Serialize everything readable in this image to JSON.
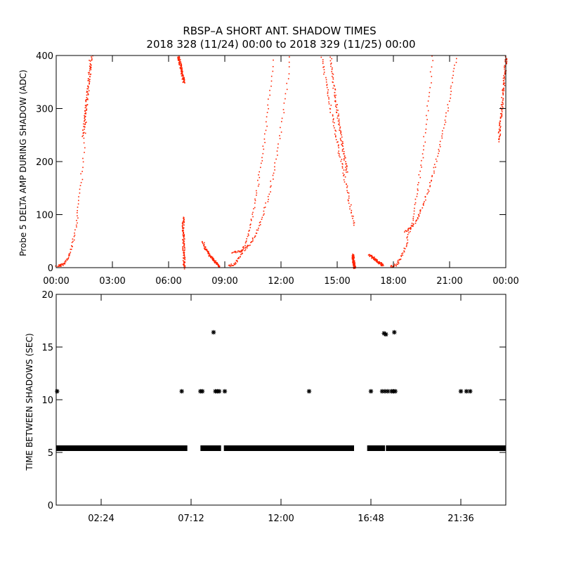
{
  "title": "RBSP–A SHORT ANT. SHADOW TIMES",
  "subtitle": "2018 328 (11/24) 00:00 to 2018 329 (11/25) 00:00",
  "chart_data": [
    {
      "type": "scatter",
      "ylabel": "Probe 5 DELTA AMP DURING SHADOW (ADC)",
      "xlabel": "",
      "xlim": [
        0,
        24
      ],
      "ylim": [
        0,
        400
      ],
      "xticks": [
        0,
        3,
        6,
        9,
        12,
        15,
        18,
        21,
        24
      ],
      "xtick_labels": [
        "00:00",
        "03:00",
        "06:00",
        "09:00",
        "12:00",
        "15:00",
        "18:00",
        "21:00",
        "00:00"
      ],
      "yticks": [
        0,
        100,
        200,
        300,
        400
      ],
      "ytick_labels": [
        "0",
        "100",
        "200",
        "300",
        "400"
      ],
      "marker_color": "#ff2200",
      "segments": [
        {
          "x0": 0.0,
          "x1": 1.8,
          "y0": 5,
          "y1": 420,
          "curve": 3.0
        },
        {
          "x0": 1.4,
          "x1": 1.9,
          "y0": 250,
          "y1": 410,
          "curve": 1.0
        },
        {
          "x0": 6.5,
          "x1": 6.8,
          "y0": 400,
          "y1": 350,
          "curve": 1.0
        },
        {
          "x0": 6.75,
          "x1": 6.8,
          "y0": 95,
          "y1": 0,
          "curve": 1.0
        },
        {
          "x0": 7.8,
          "x1": 8.7,
          "y0": 50,
          "y1": 3,
          "curve": 0.7
        },
        {
          "x0": 9.2,
          "x1": 11.6,
          "y0": 5,
          "y1": 410,
          "curve": 2.2
        },
        {
          "x0": 9.4,
          "x1": 12.5,
          "y0": 30,
          "y1": 410,
          "curve": 2.6
        },
        {
          "x0": 14.1,
          "x1": 15.9,
          "y0": 410,
          "y1": 80,
          "curve": 0.9
        },
        {
          "x0": 14.6,
          "x1": 15.5,
          "y0": 410,
          "y1": 180,
          "curve": 0.8
        },
        {
          "x0": 15.8,
          "x1": 15.9,
          "y0": 25,
          "y1": 0,
          "curve": 1.0
        },
        {
          "x0": 16.7,
          "x1": 17.4,
          "y0": 25,
          "y1": 5,
          "curve": 1.0
        },
        {
          "x0": 17.8,
          "x1": 20.1,
          "y0": 3,
          "y1": 410,
          "curve": 2.3
        },
        {
          "x0": 18.6,
          "x1": 21.4,
          "y0": 70,
          "y1": 410,
          "curve": 1.8
        },
        {
          "x0": 23.6,
          "x1": 24.0,
          "y0": 240,
          "y1": 400,
          "curve": 1.0
        }
      ]
    },
    {
      "type": "scatter",
      "ylabel": "TIME BETWEEN SHADOWS (SEC)",
      "xlabel": "",
      "xlim": [
        0,
        24
      ],
      "ylim": [
        0,
        20
      ],
      "xticks": [
        2.4,
        7.2,
        12.0,
        16.8,
        21.6
      ],
      "xtick_labels": [
        "02:24",
        "07:12",
        "12:00",
        "16:48",
        "21:36"
      ],
      "yticks": [
        0,
        5,
        10,
        15,
        20
      ],
      "ytick_labels": [
        "0",
        "5",
        "10",
        "15",
        "20"
      ],
      "marker": "asterisk",
      "baseline_value": 5.4,
      "baseline_ranges": [
        [
          0.0,
          7.0
        ],
        [
          7.7,
          8.8
        ],
        [
          8.95,
          15.9
        ],
        [
          16.6,
          17.55
        ],
        [
          17.6,
          24.0
        ]
      ],
      "points": [
        {
          "x": 0.05,
          "y": 10.8
        },
        {
          "x": 6.7,
          "y": 10.8
        },
        {
          "x": 7.7,
          "y": 10.8
        },
        {
          "x": 7.8,
          "y": 10.8
        },
        {
          "x": 8.4,
          "y": 16.4
        },
        {
          "x": 8.5,
          "y": 10.8
        },
        {
          "x": 8.6,
          "y": 10.8
        },
        {
          "x": 8.7,
          "y": 10.8
        },
        {
          "x": 9.0,
          "y": 10.8
        },
        {
          "x": 13.5,
          "y": 10.8
        },
        {
          "x": 16.8,
          "y": 10.8
        },
        {
          "x": 17.4,
          "y": 10.8
        },
        {
          "x": 17.5,
          "y": 16.3
        },
        {
          "x": 17.55,
          "y": 10.8
        },
        {
          "x": 17.6,
          "y": 16.2
        },
        {
          "x": 17.7,
          "y": 10.8
        },
        {
          "x": 17.9,
          "y": 10.8
        },
        {
          "x": 18.0,
          "y": 10.8
        },
        {
          "x": 18.05,
          "y": 16.4
        },
        {
          "x": 18.1,
          "y": 10.8
        },
        {
          "x": 21.6,
          "y": 10.8
        },
        {
          "x": 21.9,
          "y": 10.8
        },
        {
          "x": 22.1,
          "y": 10.8
        }
      ]
    }
  ]
}
